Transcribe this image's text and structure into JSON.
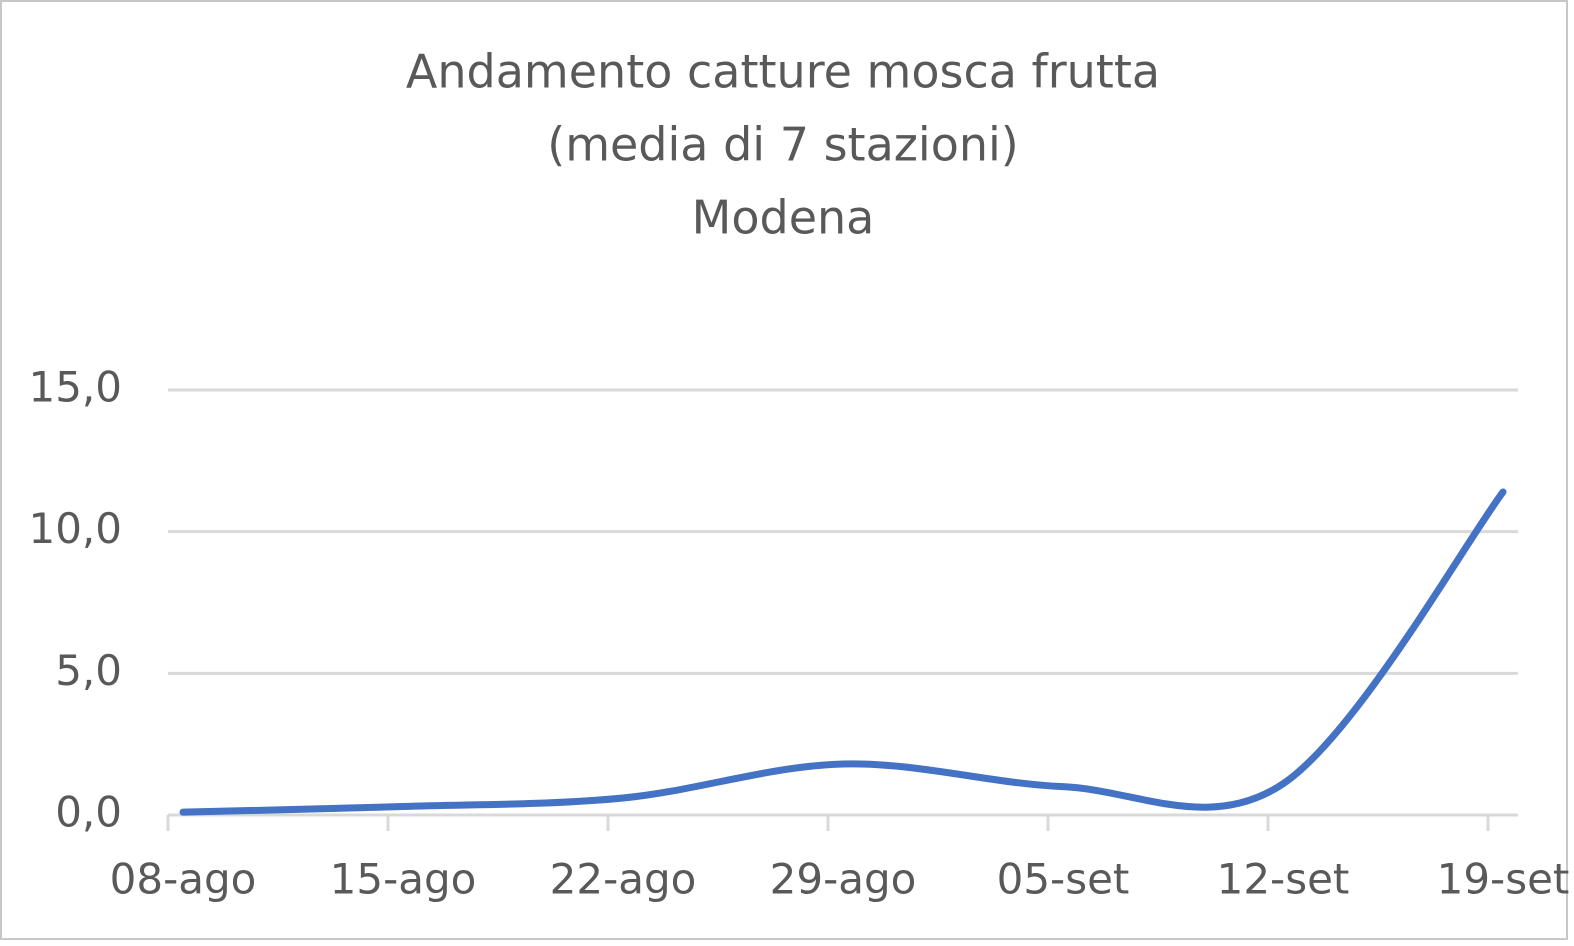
{
  "chart_data": {
    "type": "line",
    "title": [
      "Andamento catture mosca frutta",
      "(media di 7 stazioni)",
      "Modena"
    ],
    "categories": [
      "08-ago",
      "15-ago",
      "22-ago",
      "29-ago",
      "05-set",
      "12-set",
      "19-set"
    ],
    "series": [
      {
        "name": "Modena",
        "color": "#4472c4",
        "values": [
          0.1,
          0.3,
          0.6,
          1.8,
          1.0,
          1.1,
          11.4
        ]
      }
    ],
    "ylim": [
      0,
      15
    ],
    "yticks": [
      {
        "value": 0,
        "label": "0,0"
      },
      {
        "value": 5,
        "label": "5,0"
      },
      {
        "value": 10,
        "label": "10,0"
      },
      {
        "value": 15,
        "label": "15,0"
      }
    ],
    "grid": true
  }
}
